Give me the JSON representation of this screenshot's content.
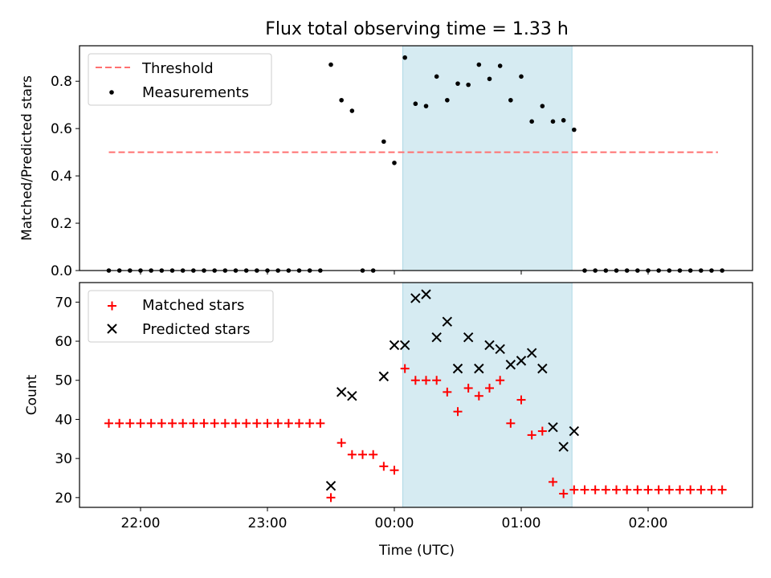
{
  "chart_data": {
    "title": "Flux total observing time = 1.33 h",
    "x_tick_labels": [
      "22:00",
      "23:00",
      "00:00",
      "01:00",
      "02:00"
    ],
    "x_tick_hours": [
      22,
      23,
      24,
      25,
      26
    ],
    "xlabel": "Time (UTC)",
    "shaded_interval": {
      "start": "00:04",
      "end": "01:24",
      "color": "#add8e6"
    },
    "panels": [
      {
        "type": "scatter",
        "ylabel": "Matched/Predicted stars",
        "ylim": [
          0,
          0.95
        ],
        "y_tick_labels": [
          "0.0",
          "0.2",
          "0.4",
          "0.6",
          "0.8"
        ],
        "y_ticks": [
          0,
          0.2,
          0.4,
          0.6,
          0.8
        ],
        "threshold": {
          "name": "Threshold",
          "value": 0.5,
          "x_start": "21:45",
          "x_end": "02:33",
          "color": "#ff7070"
        },
        "legend": {
          "position": "top-left",
          "entries": [
            "Threshold",
            "Measurements"
          ]
        },
        "series": [
          {
            "name": "Measurements",
            "color": "#000000",
            "points": [
              [
                "21:45",
                0
              ],
              [
                "21:50",
                0
              ],
              [
                "21:55",
                0
              ],
              [
                "22:00",
                0
              ],
              [
                "22:05",
                0
              ],
              [
                "22:10",
                0
              ],
              [
                "22:15",
                0
              ],
              [
                "22:20",
                0
              ],
              [
                "22:25",
                0
              ],
              [
                "22:30",
                0
              ],
              [
                "22:35",
                0
              ],
              [
                "22:40",
                0
              ],
              [
                "22:45",
                0
              ],
              [
                "22:50",
                0
              ],
              [
                "22:55",
                0
              ],
              [
                "23:00",
                0
              ],
              [
                "23:05",
                0
              ],
              [
                "23:10",
                0
              ],
              [
                "23:15",
                0
              ],
              [
                "23:20",
                0
              ],
              [
                "23:25",
                0
              ],
              [
                "23:30",
                0.87
              ],
              [
                "23:35",
                0.72
              ],
              [
                "23:40",
                0.675
              ],
              [
                "23:45",
                0
              ],
              [
                "23:50",
                0
              ],
              [
                "23:55",
                0.545
              ],
              [
                "00:00",
                0.455
              ],
              [
                "00:05",
                0.9
              ],
              [
                "00:10",
                0.705
              ],
              [
                "00:15",
                0.695
              ],
              [
                "00:20",
                0.82
              ],
              [
                "00:25",
                0.72
              ],
              [
                "00:30",
                0.79
              ],
              [
                "00:35",
                0.785
              ],
              [
                "00:40",
                0.87
              ],
              [
                "00:45",
                0.81
              ],
              [
                "00:50",
                0.865
              ],
              [
                "00:55",
                0.72
              ],
              [
                "01:00",
                0.82
              ],
              [
                "01:05",
                0.63
              ],
              [
                "01:10",
                0.695
              ],
              [
                "01:15",
                0.63
              ],
              [
                "01:20",
                0.635
              ],
              [
                "01:25",
                0.595
              ],
              [
                "01:30",
                0
              ],
              [
                "01:35",
                0
              ],
              [
                "01:40",
                0
              ],
              [
                "01:45",
                0
              ],
              [
                "01:50",
                0
              ],
              [
                "01:55",
                0
              ],
              [
                "02:00",
                0
              ],
              [
                "02:05",
                0
              ],
              [
                "02:10",
                0
              ],
              [
                "02:15",
                0
              ],
              [
                "02:20",
                0
              ],
              [
                "02:25",
                0
              ],
              [
                "02:30",
                0
              ],
              [
                "02:35",
                0
              ]
            ]
          }
        ]
      },
      {
        "type": "scatter",
        "ylabel": "Count",
        "ylim": [
          17.5,
          75
        ],
        "y_tick_labels": [
          "20",
          "30",
          "40",
          "50",
          "60",
          "70"
        ],
        "y_ticks": [
          20,
          30,
          40,
          50,
          60,
          70
        ],
        "legend": {
          "position": "top-left",
          "entries": [
            "Matched stars",
            "Predicted stars"
          ]
        },
        "series": [
          {
            "name": "Matched stars",
            "marker": "plus",
            "color": "#ff0000",
            "points": [
              [
                "21:45",
                39
              ],
              [
                "21:50",
                39
              ],
              [
                "21:55",
                39
              ],
              [
                "22:00",
                39
              ],
              [
                "22:05",
                39
              ],
              [
                "22:10",
                39
              ],
              [
                "22:15",
                39
              ],
              [
                "22:20",
                39
              ],
              [
                "22:25",
                39
              ],
              [
                "22:30",
                39
              ],
              [
                "22:35",
                39
              ],
              [
                "22:40",
                39
              ],
              [
                "22:45",
                39
              ],
              [
                "22:50",
                39
              ],
              [
                "22:55",
                39
              ],
              [
                "23:00",
                39
              ],
              [
                "23:05",
                39
              ],
              [
                "23:10",
                39
              ],
              [
                "23:15",
                39
              ],
              [
                "23:20",
                39
              ],
              [
                "23:25",
                39
              ],
              [
                "23:30",
                20
              ],
              [
                "23:35",
                34
              ],
              [
                "23:40",
                31
              ],
              [
                "23:45",
                31
              ],
              [
                "23:50",
                31
              ],
              [
                "23:55",
                28
              ],
              [
                "00:00",
                27
              ],
              [
                "00:05",
                53
              ],
              [
                "00:10",
                50
              ],
              [
                "00:15",
                50
              ],
              [
                "00:20",
                50
              ],
              [
                "00:25",
                47
              ],
              [
                "00:30",
                42
              ],
              [
                "00:35",
                48
              ],
              [
                "00:40",
                46
              ],
              [
                "00:45",
                48
              ],
              [
                "00:50",
                50
              ],
              [
                "00:55",
                39
              ],
              [
                "01:00",
                45
              ],
              [
                "01:05",
                36
              ],
              [
                "01:10",
                37
              ],
              [
                "01:15",
                24
              ],
              [
                "01:20",
                21
              ],
              [
                "01:25",
                22
              ],
              [
                "01:30",
                22
              ],
              [
                "01:35",
                22
              ],
              [
                "01:40",
                22
              ],
              [
                "01:45",
                22
              ],
              [
                "01:50",
                22
              ],
              [
                "01:55",
                22
              ],
              [
                "02:00",
                22
              ],
              [
                "02:05",
                22
              ],
              [
                "02:10",
                22
              ],
              [
                "02:15",
                22
              ],
              [
                "02:20",
                22
              ],
              [
                "02:25",
                22
              ],
              [
                "02:30",
                22
              ],
              [
                "02:35",
                22
              ]
            ]
          },
          {
            "name": "Predicted stars",
            "marker": "x",
            "color": "#000000",
            "points": [
              [
                "23:30",
                23
              ],
              [
                "23:35",
                47
              ],
              [
                "23:40",
                46
              ],
              [
                "23:55",
                51
              ],
              [
                "00:00",
                59
              ],
              [
                "00:05",
                59
              ],
              [
                "00:10",
                71
              ],
              [
                "00:15",
                72
              ],
              [
                "00:20",
                61
              ],
              [
                "00:25",
                65
              ],
              [
                "00:30",
                53
              ],
              [
                "00:35",
                61
              ],
              [
                "00:40",
                53
              ],
              [
                "00:45",
                59
              ],
              [
                "00:50",
                58
              ],
              [
                "00:55",
                54
              ],
              [
                "01:00",
                55
              ],
              [
                "01:05",
                57
              ],
              [
                "01:10",
                53
              ],
              [
                "01:15",
                38
              ],
              [
                "01:20",
                33
              ],
              [
                "01:25",
                37
              ]
            ]
          }
        ]
      }
    ]
  }
}
